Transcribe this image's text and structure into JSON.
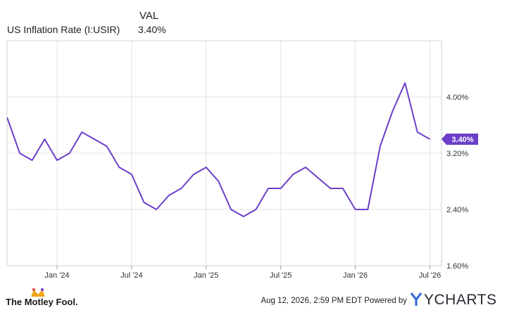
{
  "legend": {
    "header": "VAL",
    "series_name": "US Inflation Rate (I:USIR)",
    "series_value": "3.40%"
  },
  "footer": {
    "brand": "The Motley Fool.",
    "credit": "Aug 12, 2026, 2:59 PM EDT  Powered by",
    "ycharts": "YCHARTS"
  },
  "colors": {
    "line": "#6b3fc9",
    "label_bg": "#6b3fc9",
    "grid": "#e4e4e4",
    "border": "#d0d0d0"
  },
  "chart_data": {
    "type": "line",
    "x_tick_labels": [
      "Jan '24",
      "Jul '24",
      "Jan '25",
      "Jul '25",
      "Jan '26",
      "Jul '26"
    ],
    "y_tick_labels": [
      "4.00%",
      "3.20%",
      "2.40%",
      "1.60%"
    ],
    "y_ticks": [
      4.0,
      3.2,
      2.4,
      1.6
    ],
    "ylim": [
      1.6,
      4.8
    ],
    "last_value_label": "3.40%",
    "grid": true,
    "series": [
      {
        "name": "US Inflation Rate (I:USIR)",
        "x": [
          "2023-08",
          "2023-09",
          "2023-10",
          "2023-11",
          "2023-12",
          "2024-01",
          "2024-02",
          "2024-03",
          "2024-04",
          "2024-05",
          "2024-06",
          "2024-07",
          "2024-08",
          "2024-09",
          "2024-10",
          "2024-11",
          "2024-12",
          "2025-01",
          "2025-02",
          "2025-03",
          "2025-04",
          "2025-05",
          "2025-06",
          "2025-07",
          "2025-08",
          "2025-09",
          "2025-10",
          "2025-11",
          "2025-12",
          "2026-01",
          "2026-02",
          "2026-03",
          "2026-04",
          "2026-05",
          "2026-06",
          "2026-07"
        ],
        "values": [
          3.7,
          3.7,
          3.2,
          3.1,
          3.4,
          3.1,
          3.2,
          3.5,
          3.4,
          3.3,
          3.0,
          2.9,
          2.5,
          2.4,
          2.6,
          2.7,
          2.9,
          3.0,
          2.8,
          2.4,
          2.3,
          2.4,
          2.7,
          2.7,
          2.9,
          3.0,
          2.85,
          2.7,
          2.7,
          2.4,
          2.4,
          3.3,
          3.8,
          4.2,
          3.5,
          3.4
        ]
      }
    ]
  }
}
